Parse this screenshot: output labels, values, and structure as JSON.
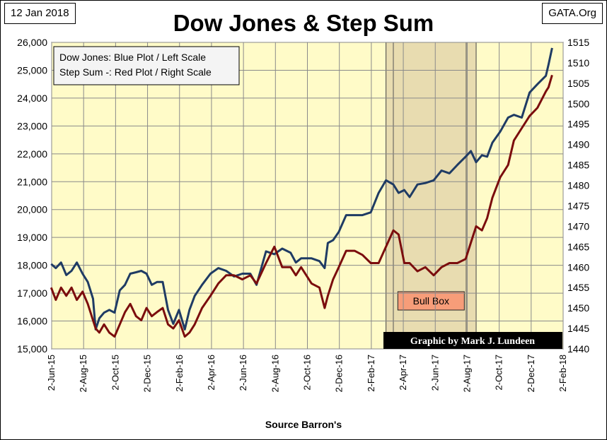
{
  "date_tag": "12 Jan 2018",
  "source_tag": "GATA.Org",
  "title": "Dow Jones & Step Sum",
  "source_note": "Source Barron's",
  "credit": "Graphic by Mark J. Lundeen",
  "legend": [
    "Dow Jones: Blue Plot / Left Scale",
    "Step Sum -: Red Plot / Right Scale"
  ],
  "colors": {
    "plot_bg": "#fffbc8",
    "bull_box": "#e8dcb0",
    "dow": "#1f3b64",
    "stepsum": "#7b0d0d",
    "bull_label_bg": "#f79d79"
  },
  "chart_data": {
    "type": "line",
    "title": "Dow Jones & Step Sum",
    "xlabel": "Source Barron's",
    "x_ticks": [
      "2-Jun-15",
      "2-Aug-15",
      "2-Oct-15",
      "2-Dec-15",
      "2-Feb-16",
      "2-Apr-16",
      "2-Jun-16",
      "2-Aug-16",
      "2-Oct-16",
      "2-Dec-16",
      "2-Feb-17",
      "2-Apr-17",
      "2-Jun-17",
      "2-Aug-17",
      "2-Oct-17",
      "2-Dec-17",
      "2-Feb-18"
    ],
    "y_left": {
      "label": "Dow Jones",
      "lim": [
        15000,
        26000
      ],
      "ticks": [
        "15,000",
        "16,000",
        "17,000",
        "18,000",
        "19,000",
        "20,000",
        "21,000",
        "22,000",
        "23,000",
        "24,000",
        "25,000",
        "26,000"
      ]
    },
    "y_right": {
      "label": "Step Sum",
      "lim": [
        1440,
        1515
      ],
      "ticks": [
        "1440",
        "1445",
        "1450",
        "1455",
        "1460",
        "1465",
        "1470",
        "1475",
        "1480",
        "1485",
        "1490",
        "1495",
        "1500",
        "1505",
        "1510",
        "1515"
      ]
    },
    "annotation": {
      "label": "Bull Box",
      "x_range": [
        "2017-03-01",
        "2017-08-20"
      ],
      "highlight_range": [
        "2017-03-15",
        "2017-08-01"
      ]
    },
    "series": [
      {
        "name": "Dow Jones",
        "axis": "left",
        "points": [
          [
            "2015-06-01",
            18050
          ],
          [
            "2015-06-10",
            17900
          ],
          [
            "2015-06-20",
            18100
          ],
          [
            "2015-06-30",
            17650
          ],
          [
            "2015-07-10",
            17800
          ],
          [
            "2015-07-20",
            18100
          ],
          [
            "2015-07-31",
            17700
          ],
          [
            "2015-08-10",
            17400
          ],
          [
            "2015-08-20",
            16800
          ],
          [
            "2015-08-25",
            15700
          ],
          [
            "2015-09-01",
            16100
          ],
          [
            "2015-09-10",
            16300
          ],
          [
            "2015-09-20",
            16400
          ],
          [
            "2015-09-30",
            16300
          ],
          [
            "2015-10-10",
            17100
          ],
          [
            "2015-10-20",
            17300
          ],
          [
            "2015-10-30",
            17700
          ],
          [
            "2015-11-10",
            17750
          ],
          [
            "2015-11-20",
            17800
          ],
          [
            "2015-11-30",
            17700
          ],
          [
            "2015-12-10",
            17300
          ],
          [
            "2015-12-20",
            17400
          ],
          [
            "2015-12-31",
            17400
          ],
          [
            "2016-01-10",
            16400
          ],
          [
            "2016-01-20",
            15900
          ],
          [
            "2016-01-31",
            16400
          ],
          [
            "2016-02-11",
            15700
          ],
          [
            "2016-02-20",
            16400
          ],
          [
            "2016-03-01",
            16900
          ],
          [
            "2016-03-15",
            17300
          ],
          [
            "2016-03-31",
            17700
          ],
          [
            "2016-04-15",
            17900
          ],
          [
            "2016-04-30",
            17800
          ],
          [
            "2016-05-15",
            17600
          ],
          [
            "2016-05-31",
            17700
          ],
          [
            "2016-06-15",
            17700
          ],
          [
            "2016-06-27",
            17300
          ],
          [
            "2016-07-15",
            18500
          ],
          [
            "2016-07-31",
            18400
          ],
          [
            "2016-08-15",
            18600
          ],
          [
            "2016-08-31",
            18450
          ],
          [
            "2016-09-10",
            18100
          ],
          [
            "2016-09-20",
            18250
          ],
          [
            "2016-10-10",
            18250
          ],
          [
            "2016-10-25",
            18150
          ],
          [
            "2016-11-04",
            17900
          ],
          [
            "2016-11-10",
            18800
          ],
          [
            "2016-11-20",
            18900
          ],
          [
            "2016-12-01",
            19200
          ],
          [
            "2016-12-15",
            19800
          ],
          [
            "2016-12-31",
            19800
          ],
          [
            "2017-01-15",
            19800
          ],
          [
            "2017-01-31",
            19900
          ],
          [
            "2017-02-15",
            20600
          ],
          [
            "2017-03-01",
            21050
          ],
          [
            "2017-03-15",
            20900
          ],
          [
            "2017-03-25",
            20600
          ],
          [
            "2017-04-05",
            20700
          ],
          [
            "2017-04-15",
            20450
          ],
          [
            "2017-04-30",
            20900
          ],
          [
            "2017-05-15",
            20950
          ],
          [
            "2017-05-31",
            21050
          ],
          [
            "2017-06-15",
            21400
          ],
          [
            "2017-06-30",
            21300
          ],
          [
            "2017-07-15",
            21600
          ],
          [
            "2017-07-31",
            21900
          ],
          [
            "2017-08-10",
            22100
          ],
          [
            "2017-08-20",
            21700
          ],
          [
            "2017-08-31",
            21950
          ],
          [
            "2017-09-10",
            21900
          ],
          [
            "2017-09-20",
            22400
          ],
          [
            "2017-10-05",
            22800
          ],
          [
            "2017-10-20",
            23300
          ],
          [
            "2017-10-31",
            23400
          ],
          [
            "2017-11-15",
            23300
          ],
          [
            "2017-11-30",
            24200
          ],
          [
            "2017-12-15",
            24500
          ],
          [
            "2017-12-31",
            24800
          ],
          [
            "2018-01-05",
            25200
          ],
          [
            "2018-01-12",
            25800
          ]
        ]
      },
      {
        "name": "Step Sum",
        "axis": "right",
        "points": [
          [
            "2015-06-01",
            1455
          ],
          [
            "2015-06-10",
            1452
          ],
          [
            "2015-06-20",
            1455
          ],
          [
            "2015-06-30",
            1453
          ],
          [
            "2015-07-10",
            1455
          ],
          [
            "2015-07-20",
            1452
          ],
          [
            "2015-07-31",
            1454
          ],
          [
            "2015-08-10",
            1451
          ],
          [
            "2015-08-20",
            1447
          ],
          [
            "2015-08-25",
            1445
          ],
          [
            "2015-09-01",
            1444
          ],
          [
            "2015-09-10",
            1446
          ],
          [
            "2015-09-20",
            1444
          ],
          [
            "2015-09-30",
            1443
          ],
          [
            "2015-10-10",
            1446
          ],
          [
            "2015-10-20",
            1449
          ],
          [
            "2015-10-30",
            1451
          ],
          [
            "2015-11-10",
            1448
          ],
          [
            "2015-11-20",
            1447
          ],
          [
            "2015-11-30",
            1450
          ],
          [
            "2015-12-10",
            1448
          ],
          [
            "2015-12-20",
            1449
          ],
          [
            "2015-12-31",
            1450
          ],
          [
            "2016-01-10",
            1446
          ],
          [
            "2016-01-20",
            1445
          ],
          [
            "2016-01-31",
            1447
          ],
          [
            "2016-02-11",
            1443
          ],
          [
            "2016-02-20",
            1444
          ],
          [
            "2016-03-01",
            1446
          ],
          [
            "2016-03-15",
            1450
          ],
          [
            "2016-03-31",
            1453
          ],
          [
            "2016-04-15",
            1456
          ],
          [
            "2016-04-30",
            1458
          ],
          [
            "2016-05-15",
            1458
          ],
          [
            "2016-05-31",
            1457
          ],
          [
            "2016-06-15",
            1458
          ],
          [
            "2016-06-27",
            1456
          ],
          [
            "2016-07-15",
            1461
          ],
          [
            "2016-07-31",
            1465
          ],
          [
            "2016-08-15",
            1460
          ],
          [
            "2016-08-31",
            1460
          ],
          [
            "2016-09-10",
            1458
          ],
          [
            "2016-09-20",
            1460
          ],
          [
            "2016-10-10",
            1456
          ],
          [
            "2016-10-25",
            1455
          ],
          [
            "2016-11-04",
            1450
          ],
          [
            "2016-11-10",
            1453
          ],
          [
            "2016-11-20",
            1457
          ],
          [
            "2016-12-01",
            1460
          ],
          [
            "2016-12-15",
            1464
          ],
          [
            "2016-12-31",
            1464
          ],
          [
            "2017-01-15",
            1463
          ],
          [
            "2017-01-31",
            1461
          ],
          [
            "2017-02-15",
            1461
          ],
          [
            "2017-03-01",
            1465
          ],
          [
            "2017-03-15",
            1469
          ],
          [
            "2017-03-25",
            1468
          ],
          [
            "2017-04-05",
            1461
          ],
          [
            "2017-04-15",
            1461
          ],
          [
            "2017-04-30",
            1459
          ],
          [
            "2017-05-15",
            1460
          ],
          [
            "2017-05-31",
            1458
          ],
          [
            "2017-06-15",
            1460
          ],
          [
            "2017-06-30",
            1461
          ],
          [
            "2017-07-15",
            1461
          ],
          [
            "2017-07-31",
            1462
          ],
          [
            "2017-08-10",
            1466
          ],
          [
            "2017-08-20",
            1470
          ],
          [
            "2017-08-31",
            1469
          ],
          [
            "2017-09-10",
            1472
          ],
          [
            "2017-09-20",
            1477
          ],
          [
            "2017-10-05",
            1482
          ],
          [
            "2017-10-20",
            1485
          ],
          [
            "2017-10-31",
            1491
          ],
          [
            "2017-11-15",
            1494
          ],
          [
            "2017-11-30",
            1497
          ],
          [
            "2017-12-15",
            1499
          ],
          [
            "2017-12-31",
            1503
          ],
          [
            "2018-01-05",
            1504
          ],
          [
            "2018-01-12",
            1507
          ]
        ]
      }
    ],
    "grid": true
  }
}
